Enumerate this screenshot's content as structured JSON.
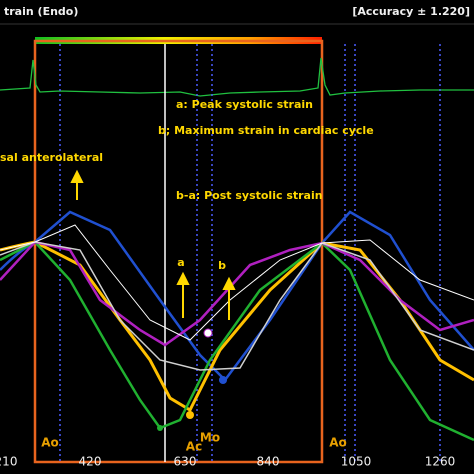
{
  "header": {
    "title": "train (Endo)",
    "accuracy": "[Accuracy ± 1.220]"
  },
  "segment": "sal anterolateral",
  "annotations": [
    "a: Peak systolic strain",
    "b; Maximum strain in cardiac cycle",
    "b-a: Post systolic strain"
  ],
  "arrow_labels": [
    "a",
    "b"
  ],
  "events": [
    "Ao",
    "Ac",
    "Mo",
    "Ao"
  ],
  "x_ticks": [
    210,
    420,
    630,
    840,
    1050,
    1260
  ]
}
